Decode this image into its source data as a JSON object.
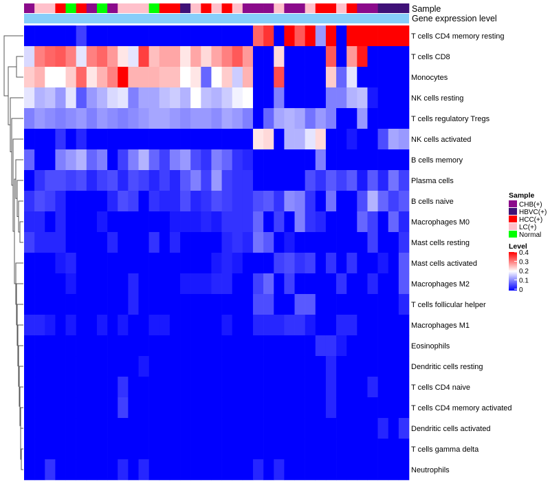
{
  "chart_data": {
    "type": "heatmap",
    "title": "",
    "annotation_tracks": [
      "Sample",
      "Gene expression level"
    ],
    "rows": [
      "T cells CD4 memory resting",
      "T cells CD8",
      "Monocytes",
      "NK cells resting",
      "T cells regulatory  Tregs",
      "NK cells activated",
      "B cells memory",
      "Plasma cells",
      "B cells naive",
      "Macrophages M0",
      "Mast cells resting",
      "Mast cells activated",
      "Macrophages M2",
      "T cells follicular helper",
      "Macrophages M1",
      "Eosinophils",
      "Dendritic cells resting",
      "T cells CD4 naive",
      "T cells CD4 memory activated",
      "Dendritic cells activated",
      "T cells gamma delta",
      "Neutrophils"
    ],
    "n_columns": 37,
    "column_samples": [
      "CHB(+)",
      "LC(+)",
      "LC(+)",
      "HCC(+)",
      "Normal",
      "HCC(+)",
      "CHB(+)",
      "Normal",
      "CHB(+)",
      "LC(+)",
      "LC(+)",
      "LC(+)",
      "Normal",
      "HCC(+)",
      "HCC(+)",
      "HBVC(+)",
      "LC(+)",
      "HCC(+)",
      "LC(+)",
      "HCC(+)",
      "LC(+)",
      "CHB(+)",
      "CHB(+)",
      "CHB(+)",
      "LC(+)",
      "CHB(+)",
      "CHB(+)",
      "LC(+)",
      "HCC(+)",
      "HCC(+)",
      "LC(+)",
      "HCC(+)",
      "CHB(+)",
      "CHB(+)",
      "HBVC(+)",
      "HBVC(+)",
      "HBVC(+)"
    ],
    "values": [
      [
        0,
        0,
        0,
        0,
        0,
        0.05,
        0,
        0,
        0,
        0,
        0,
        0,
        0,
        0,
        0,
        0,
        0,
        0,
        0,
        0,
        0,
        0,
        0.32,
        0.36,
        0,
        0.4,
        0.33,
        0.4,
        0.12,
        0.4,
        0,
        0.4,
        0.4,
        0.4,
        0.4,
        0.4,
        0.4
      ],
      [
        0.17,
        0.3,
        0.32,
        0.33,
        0.3,
        0.18,
        0.3,
        0.32,
        0.28,
        0.22,
        0.18,
        0.35,
        0.25,
        0.27,
        0.27,
        0.22,
        0.27,
        0.23,
        0.27,
        0.3,
        0.33,
        0.28,
        0,
        0,
        0.23,
        0,
        0,
        0,
        0,
        0.33,
        0,
        0.28,
        0.38,
        0,
        0,
        0,
        0
      ],
      [
        0.24,
        0.26,
        0.2,
        0.2,
        0.24,
        0.32,
        0.22,
        0.26,
        0.3,
        0.4,
        0.26,
        0.26,
        0.26,
        0.25,
        0.25,
        0.2,
        0.22,
        0.08,
        0.2,
        0.24,
        0.16,
        0.26,
        0,
        0,
        0.34,
        0,
        0,
        0,
        0,
        0.24,
        0.08,
        0.18,
        0,
        0,
        0,
        0,
        0
      ],
      [
        0.18,
        0.14,
        0.15,
        0.12,
        0.18,
        0.07,
        0.12,
        0.14,
        0.17,
        0.18,
        0.1,
        0.13,
        0.13,
        0.15,
        0.16,
        0.14,
        0.2,
        0.15,
        0.14,
        0.16,
        0.19,
        0.2,
        0,
        0,
        0.1,
        0,
        0,
        0,
        0,
        0.1,
        0.1,
        0.14,
        0.15,
        0.02,
        0,
        0,
        0
      ],
      [
        0.1,
        0.12,
        0.11,
        0.1,
        0.11,
        0.12,
        0.1,
        0.12,
        0.11,
        0.1,
        0.11,
        0.12,
        0.13,
        0.13,
        0.12,
        0.11,
        0.12,
        0.12,
        0.11,
        0.13,
        0.12,
        0.1,
        0,
        0.08,
        0.13,
        0.14,
        0.13,
        0.09,
        0.12,
        0.1,
        0,
        0,
        0.12,
        0,
        0,
        0,
        0
      ],
      [
        0,
        0,
        0,
        0.04,
        0,
        0.03,
        0,
        0,
        0,
        0,
        0,
        0,
        0,
        0,
        0,
        0,
        0,
        0,
        0,
        0,
        0,
        0,
        0.22,
        0.23,
        0,
        0.14,
        0.14,
        0.18,
        0.23,
        0,
        0,
        0.02,
        0,
        0,
        0.06,
        0.13,
        0.12
      ],
      [
        0.08,
        0,
        0,
        0.1,
        0.12,
        0.14,
        0.08,
        0.1,
        0,
        0.05,
        0.1,
        0.14,
        0.08,
        0.05,
        0.1,
        0.12,
        0.06,
        0.04,
        0.1,
        0.08,
        0.04,
        0.03,
        0,
        0,
        0,
        0,
        0,
        0,
        0.1,
        0,
        0,
        0,
        0,
        0,
        0,
        0,
        0
      ],
      [
        0,
        0.04,
        0.06,
        0.06,
        0.05,
        0.06,
        0.03,
        0.05,
        0.06,
        0.03,
        0.06,
        0.05,
        0.03,
        0.05,
        0.03,
        0.07,
        0.1,
        0.05,
        0.12,
        0.05,
        0.04,
        0.04,
        0,
        0,
        0,
        0,
        0,
        0.06,
        0.04,
        0.07,
        0.05,
        0.07,
        0.02,
        0.07,
        0.03,
        0.09,
        0.05
      ],
      [
        0.04,
        0.06,
        0.05,
        0.03,
        0,
        0,
        0,
        0,
        0.03,
        0.06,
        0.05,
        0,
        0.04,
        0.03,
        0.03,
        0.06,
        0.03,
        0.04,
        0.06,
        0.05,
        0.04,
        0.04,
        0.06,
        0.07,
        0.04,
        0.11,
        0.1,
        0.04,
        0,
        0.09,
        0,
        0,
        0.06,
        0.14,
        0.08,
        0.05,
        0.07
      ],
      [
        0.03,
        0.03,
        0,
        0.03,
        0,
        0,
        0,
        0.02,
        0,
        0,
        0,
        0,
        0,
        0,
        0.02,
        0.02,
        0.02,
        0.03,
        0.02,
        0.04,
        0.04,
        0.04,
        0.08,
        0,
        0.05,
        0,
        0.1,
        0.04,
        0.03,
        0,
        0,
        0,
        0.08,
        0.05,
        0,
        0.08,
        0.03
      ],
      [
        0.05,
        0.03,
        0.03,
        0.03,
        0,
        0,
        0,
        0,
        0.03,
        0,
        0,
        0,
        0.04,
        0,
        0.03,
        0,
        0,
        0,
        0,
        0.03,
        0.04,
        0.03,
        0.09,
        0.07,
        0,
        0.02,
        0,
        0,
        0,
        0,
        0,
        0,
        0,
        0.05,
        0,
        0,
        0.04
      ],
      [
        0,
        0,
        0,
        0.02,
        0.03,
        0,
        0,
        0,
        0,
        0,
        0,
        0,
        0,
        0,
        0,
        0,
        0,
        0,
        0.02,
        0.03,
        0.02,
        0,
        0,
        0,
        0.05,
        0.06,
        0.04,
        0.05,
        0,
        0.04,
        0,
        0.04,
        0,
        0,
        0.02,
        0,
        0.07
      ],
      [
        0,
        0,
        0,
        0,
        0.02,
        0,
        0,
        0,
        0,
        0,
        0.03,
        0,
        0,
        0,
        0,
        0.02,
        0.02,
        0.02,
        0.03,
        0.03,
        0,
        0,
        0.05,
        0.08,
        0,
        0.05,
        0,
        0,
        0,
        0,
        0.04,
        0,
        0,
        0.03,
        0,
        0,
        0.07
      ],
      [
        0,
        0,
        0,
        0,
        0,
        0,
        0,
        0,
        0,
        0,
        0.03,
        0,
        0,
        0,
        0,
        0,
        0,
        0,
        0,
        0,
        0,
        0,
        0.06,
        0.06,
        0,
        0,
        0.07,
        0.07,
        0,
        0,
        0,
        0,
        0,
        0,
        0,
        0,
        0.03
      ],
      [
        0.03,
        0.03,
        0.02,
        0,
        0.02,
        0,
        0,
        0.02,
        0,
        0.02,
        0,
        0,
        0.02,
        0.02,
        0,
        0,
        0,
        0,
        0,
        0.02,
        0,
        0,
        0.03,
        0.03,
        0.03,
        0.04,
        0.04,
        0.02,
        0,
        0,
        0.03,
        0.03,
        0,
        0,
        0,
        0,
        0
      ],
      [
        0,
        0,
        0,
        0,
        0,
        0,
        0,
        0,
        0,
        0,
        0,
        0,
        0,
        0,
        0,
        0,
        0,
        0,
        0,
        0,
        0,
        0,
        0,
        0,
        0,
        0,
        0,
        0,
        0.04,
        0.04,
        0.02,
        0,
        0,
        0,
        0,
        0,
        0
      ],
      [
        0,
        0,
        0,
        0,
        0,
        0,
        0,
        0,
        0,
        0,
        0,
        0.02,
        0,
        0,
        0,
        0,
        0,
        0,
        0,
        0,
        0,
        0,
        0,
        0,
        0,
        0,
        0,
        0,
        0,
        0.03,
        0,
        0,
        0,
        0,
        0,
        0,
        0
      ],
      [
        0,
        0,
        0,
        0,
        0,
        0,
        0,
        0,
        0,
        0.04,
        0,
        0,
        0,
        0,
        0,
        0,
        0,
        0,
        0,
        0,
        0,
        0,
        0,
        0,
        0,
        0,
        0,
        0,
        0,
        0.03,
        0,
        0,
        0,
        0.03,
        0,
        0,
        0
      ],
      [
        0,
        0,
        0,
        0,
        0,
        0,
        0,
        0,
        0,
        0.05,
        0,
        0,
        0,
        0,
        0,
        0,
        0,
        0,
        0,
        0,
        0,
        0,
        0,
        0,
        0,
        0,
        0,
        0,
        0,
        0.03,
        0,
        0,
        0,
        0,
        0,
        0,
        0
      ],
      [
        0,
        0,
        0,
        0,
        0,
        0,
        0,
        0,
        0,
        0,
        0,
        0,
        0,
        0,
        0,
        0,
        0,
        0,
        0,
        0,
        0,
        0,
        0,
        0,
        0,
        0,
        0,
        0,
        0,
        0,
        0,
        0,
        0,
        0,
        0.03,
        0,
        0.04
      ],
      [
        0,
        0,
        0,
        0,
        0,
        0,
        0,
        0,
        0,
        0,
        0,
        0,
        0,
        0,
        0,
        0,
        0,
        0,
        0,
        0,
        0,
        0,
        0,
        0,
        0,
        0,
        0,
        0,
        0,
        0,
        0,
        0,
        0,
        0,
        0,
        0,
        0
      ],
      [
        0,
        0,
        0.04,
        0,
        0,
        0,
        0,
        0,
        0,
        0.03,
        0,
        0.03,
        0,
        0,
        0,
        0,
        0,
        0,
        0,
        0,
        0,
        0,
        0.03,
        0,
        0.03,
        0,
        0,
        0,
        0,
        0,
        0,
        0,
        0,
        0,
        0,
        0,
        0
      ]
    ],
    "legend_sample": {
      "title": "Sample",
      "items": [
        {
          "label": "CHB(+)",
          "color": "#8B0A8B"
        },
        {
          "label": "HBVC(+)",
          "color": "#3F1177"
        },
        {
          "label": "HCC(+)",
          "color": "#FF0000"
        },
        {
          "label": "LC(+)",
          "color": "#FFC0CB"
        },
        {
          "label": "Normal",
          "color": "#00FF00"
        }
      ]
    },
    "legend_level": {
      "title": "Level",
      "ticks": [
        "0.4",
        "0.3",
        "0.2",
        "0.1",
        "0"
      ],
      "range": [
        0,
        0.4
      ],
      "color_low": "#0000FF",
      "color_mid": "#FFFFFF",
      "color_high": "#FF0000"
    },
    "gene_expression_color": "#87CEFA"
  }
}
